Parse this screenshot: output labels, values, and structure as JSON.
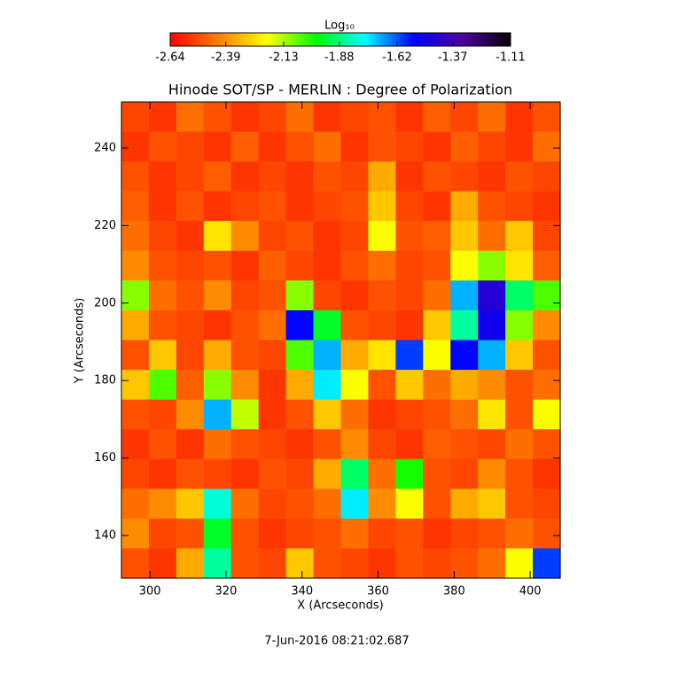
{
  "chart_data": {
    "type": "heatmap",
    "title": "Hinode SOT/SP - MERLIN : Degree of Polarization",
    "xlabel": "X (Arcseconds)",
    "ylabel": "Y (Arcseconds)",
    "footer": "7-Jun-2016 08:21:02.687",
    "colorbar_label": "Log₁₀",
    "colormap": [
      "#ff0000",
      "#ff8000",
      "#ffff00",
      "#00ff00",
      "#00ffff",
      "#0000ff",
      "#5000a0",
      "#000000"
    ],
    "clim": [
      -2.64,
      -1.11
    ],
    "cticks": [
      -2.64,
      -2.39,
      -2.13,
      -1.88,
      -1.62,
      -1.37,
      -1.11
    ],
    "xlim": [
      292.5,
      407.9
    ],
    "xticks": [
      300,
      320,
      340,
      360,
      380,
      400
    ],
    "ylim": [
      129,
      251.9
    ],
    "yticks": [
      140,
      160,
      180,
      200,
      220,
      240
    ],
    "z": [
      [
        -2.52,
        -2.55,
        -2.45,
        -2.5,
        -2.55,
        -2.52,
        -2.45,
        -2.55,
        -2.52,
        -2.5,
        -2.55,
        -2.48,
        -2.52,
        -2.45,
        -2.55,
        -2.5
      ],
      [
        -2.55,
        -2.5,
        -2.52,
        -2.55,
        -2.48,
        -2.55,
        -2.5,
        -2.45,
        -2.55,
        -2.5,
        -2.52,
        -2.55,
        -2.48,
        -2.52,
        -2.55,
        -2.45
      ],
      [
        -2.5,
        -2.55,
        -2.52,
        -2.48,
        -2.55,
        -2.52,
        -2.55,
        -2.5,
        -2.52,
        -2.35,
        -2.55,
        -2.5,
        -2.52,
        -2.55,
        -2.5,
        -2.52
      ],
      [
        -2.48,
        -2.55,
        -2.5,
        -2.55,
        -2.52,
        -2.5,
        -2.55,
        -2.52,
        -2.5,
        -2.3,
        -2.52,
        -2.55,
        -2.35,
        -2.5,
        -2.52,
        -2.55
      ],
      [
        -2.45,
        -2.52,
        -2.55,
        -2.25,
        -2.4,
        -2.52,
        -2.5,
        -2.55,
        -2.52,
        -2.2,
        -2.5,
        -2.48,
        -2.3,
        -2.45,
        -2.3,
        -2.52
      ],
      [
        -2.4,
        -2.5,
        -2.52,
        -2.5,
        -2.55,
        -2.48,
        -2.52,
        -2.55,
        -2.5,
        -2.45,
        -2.52,
        -2.5,
        -2.2,
        -2.1,
        -2.25,
        -2.48
      ],
      [
        -2.1,
        -2.45,
        -2.5,
        -2.4,
        -2.52,
        -2.5,
        -2.1,
        -2.52,
        -2.55,
        -2.5,
        -2.52,
        -2.45,
        -1.7,
        -1.45,
        -1.9,
        -2.05
      ],
      [
        -2.35,
        -2.5,
        -2.52,
        -2.55,
        -2.5,
        -2.45,
        -1.55,
        -1.95,
        -2.5,
        -2.52,
        -2.55,
        -2.3,
        -1.85,
        -1.5,
        -2.1,
        -2.4
      ],
      [
        -2.5,
        -2.3,
        -2.52,
        -2.35,
        -2.5,
        -2.52,
        -2.05,
        -1.7,
        -2.35,
        -2.25,
        -1.6,
        -2.2,
        -1.55,
        -1.7,
        -2.3,
        -2.5
      ],
      [
        -2.3,
        -2.05,
        -2.48,
        -2.1,
        -2.4,
        -2.55,
        -2.35,
        -1.75,
        -2.2,
        -2.5,
        -2.3,
        -2.45,
        -2.35,
        -2.4,
        -2.5,
        -2.45
      ],
      [
        -2.5,
        -2.52,
        -2.4,
        -1.7,
        -2.15,
        -2.55,
        -2.5,
        -2.3,
        -2.45,
        -2.55,
        -2.52,
        -2.5,
        -2.45,
        -2.25,
        -2.5,
        -2.2
      ],
      [
        -2.55,
        -2.5,
        -2.55,
        -2.45,
        -2.5,
        -2.52,
        -2.55,
        -2.5,
        -2.4,
        -2.52,
        -2.55,
        -2.48,
        -2.5,
        -2.52,
        -2.45,
        -2.5
      ],
      [
        -2.52,
        -2.55,
        -2.5,
        -2.52,
        -2.55,
        -2.5,
        -2.52,
        -2.35,
        -1.9,
        -2.45,
        -2.0,
        -2.5,
        -2.52,
        -2.4,
        -2.5,
        -2.55
      ],
      [
        -2.45,
        -2.4,
        -2.3,
        -1.8,
        -2.45,
        -2.52,
        -2.5,
        -2.45,
        -1.75,
        -2.4,
        -2.2,
        -2.5,
        -2.35,
        -2.3,
        -2.5,
        -2.52
      ],
      [
        -2.4,
        -2.52,
        -2.5,
        -1.95,
        -2.5,
        -2.55,
        -2.52,
        -2.5,
        -2.45,
        -2.52,
        -2.5,
        -2.55,
        -2.52,
        -2.5,
        -2.45,
        -2.5
      ],
      [
        -2.5,
        -2.55,
        -2.35,
        -1.85,
        -2.5,
        -2.52,
        -2.3,
        -2.5,
        -2.52,
        -2.55,
        -2.5,
        -2.52,
        -2.5,
        -2.45,
        -2.2,
        -1.6
      ]
    ]
  }
}
